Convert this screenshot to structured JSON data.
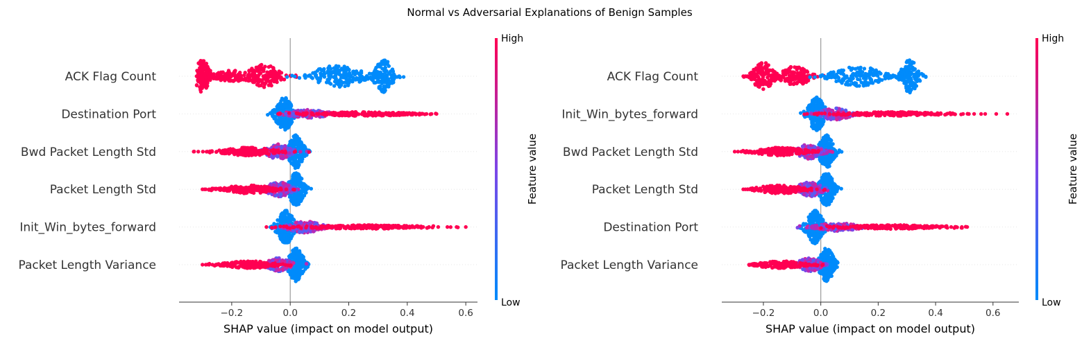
{
  "figure": {
    "suptitle": "Normal vs Adversarial Explanations of Benign Samples"
  },
  "colors": {
    "low": "#008bfb",
    "high": "#ff0052",
    "zero_line": "#999999",
    "row_grid": "#e6e6e6",
    "axis": "#333333"
  },
  "chart_data": [
    {
      "type": "scatter",
      "variant": "shap-beeswarm",
      "title": "",
      "xlabel": "SHAP value (impact on model output)",
      "ylabel": "",
      "xlim": [
        -0.38,
        0.64
      ],
      "xticks": [
        -0.2,
        0.0,
        0.2,
        0.4,
        0.6
      ],
      "xtick_labels": [
        "−0.2",
        "0.0",
        "0.2",
        "0.4",
        "0.6"
      ],
      "colorbar": {
        "title": "Feature value",
        "high_label": "High",
        "low_label": "Low"
      },
      "features": [
        {
          "name": "ACK Flag Count",
          "clusters": [
            {
              "center": -0.3,
              "spread": 0.018,
              "height": 1.0,
              "color": "high",
              "weight": 3
            },
            {
              "center": -0.2,
              "spread": 0.04,
              "height": 0.35,
              "color": "high",
              "weight": 2
            },
            {
              "center": -0.09,
              "spread": 0.04,
              "height": 0.7,
              "color": "high",
              "weight": 3
            },
            {
              "center": 0.16,
              "spread": 0.06,
              "height": 0.65,
              "color": "low",
              "weight": 4
            },
            {
              "center": 0.32,
              "spread": 0.022,
              "height": 1.0,
              "color": "low",
              "weight": 3
            }
          ],
          "range": [
            -0.32,
            0.39
          ]
        },
        {
          "name": "Destination Port",
          "clusters": [
            {
              "center": -0.02,
              "spread": 0.02,
              "height": 1.0,
              "color": "low",
              "weight": 5
            },
            {
              "center": 0.06,
              "spread": 0.05,
              "height": 0.25,
              "color": "mid",
              "weight": 3
            },
            {
              "center": 0.25,
              "spread": 0.12,
              "height": 0.12,
              "color": "high",
              "weight": 5
            }
          ],
          "range": [
            -0.085,
            0.5
          ]
        },
        {
          "name": "Bwd Packet Length Std",
          "clusters": [
            {
              "center": 0.02,
              "spread": 0.018,
              "height": 1.0,
              "color": "low",
              "weight": 5
            },
            {
              "center": -0.04,
              "spread": 0.03,
              "height": 0.45,
              "color": "mid",
              "weight": 3
            },
            {
              "center": -0.14,
              "spread": 0.06,
              "height": 0.25,
              "color": "high",
              "weight": 4
            }
          ],
          "range": [
            -0.33,
            0.09
          ]
        },
        {
          "name": "Packet Length Std",
          "clusters": [
            {
              "center": 0.02,
              "spread": 0.018,
              "height": 1.0,
              "color": "low",
              "weight": 5
            },
            {
              "center": -0.04,
              "spread": 0.03,
              "height": 0.45,
              "color": "mid",
              "weight": 3
            },
            {
              "center": -0.14,
              "spread": 0.06,
              "height": 0.25,
              "color": "high",
              "weight": 4
            }
          ],
          "range": [
            -0.3,
            0.095
          ]
        },
        {
          "name": "Init_Win_bytes_forward",
          "clusters": [
            {
              "center": -0.015,
              "spread": 0.02,
              "height": 1.0,
              "color": "low",
              "weight": 5
            },
            {
              "center": 0.05,
              "spread": 0.04,
              "height": 0.35,
              "color": "mid",
              "weight": 3
            },
            {
              "center": 0.25,
              "spread": 0.13,
              "height": 0.12,
              "color": "high",
              "weight": 5
            }
          ],
          "range": [
            -0.085,
            0.6
          ]
        },
        {
          "name": "Packet Length Variance",
          "clusters": [
            {
              "center": 0.02,
              "spread": 0.018,
              "height": 1.0,
              "color": "low",
              "weight": 5
            },
            {
              "center": -0.04,
              "spread": 0.03,
              "height": 0.4,
              "color": "mid",
              "weight": 3
            },
            {
              "center": -0.14,
              "spread": 0.06,
              "height": 0.22,
              "color": "high",
              "weight": 4
            }
          ],
          "range": [
            -0.3,
            0.07
          ]
        }
      ]
    },
    {
      "type": "scatter",
      "variant": "shap-beeswarm",
      "title": "",
      "xlabel": "SHAP value (impact on model output)",
      "ylabel": "",
      "xlim": [
        -0.345,
        0.69
      ],
      "xticks": [
        -0.2,
        0.0,
        0.2,
        0.4,
        0.6
      ],
      "xtick_labels": [
        "−0.2",
        "0.0",
        "0.2",
        "0.4",
        "0.6"
      ],
      "colorbar": {
        "title": "Feature value",
        "high_label": "High",
        "low_label": "Low"
      },
      "features": [
        {
          "name": "ACK Flag Count",
          "clusters": [
            {
              "center": -0.2,
              "spread": 0.025,
              "height": 0.85,
              "color": "high",
              "weight": 3
            },
            {
              "center": -0.09,
              "spread": 0.035,
              "height": 0.6,
              "color": "high",
              "weight": 3
            },
            {
              "center": 0.13,
              "spread": 0.06,
              "height": 0.6,
              "color": "low",
              "weight": 4
            },
            {
              "center": 0.31,
              "spread": 0.02,
              "height": 1.0,
              "color": "low",
              "weight": 3
            }
          ],
          "range": [
            -0.27,
            0.38
          ]
        },
        {
          "name": "Init_Win_bytes_forward",
          "clusters": [
            {
              "center": -0.015,
              "spread": 0.02,
              "height": 1.0,
              "color": "low",
              "weight": 5
            },
            {
              "center": 0.05,
              "spread": 0.04,
              "height": 0.35,
              "color": "mid",
              "weight": 3
            },
            {
              "center": 0.25,
              "spread": 0.12,
              "height": 0.12,
              "color": "high",
              "weight": 5
            }
          ],
          "range": [
            -0.085,
            0.65
          ]
        },
        {
          "name": "Bwd Packet Length Std",
          "clusters": [
            {
              "center": 0.02,
              "spread": 0.018,
              "height": 1.0,
              "color": "low",
              "weight": 5
            },
            {
              "center": -0.04,
              "spread": 0.03,
              "height": 0.45,
              "color": "mid",
              "weight": 3
            },
            {
              "center": -0.14,
              "spread": 0.06,
              "height": 0.25,
              "color": "high",
              "weight": 4
            }
          ],
          "range": [
            -0.3,
            0.09
          ]
        },
        {
          "name": "Packet Length Std",
          "clusters": [
            {
              "center": 0.02,
              "spread": 0.018,
              "height": 1.0,
              "color": "low",
              "weight": 5
            },
            {
              "center": -0.04,
              "spread": 0.03,
              "height": 0.45,
              "color": "mid",
              "weight": 3
            },
            {
              "center": -0.14,
              "spread": 0.06,
              "height": 0.25,
              "color": "high",
              "weight": 4
            }
          ],
          "range": [
            -0.27,
            0.085
          ]
        },
        {
          "name": "Destination Port",
          "clusters": [
            {
              "center": -0.02,
              "spread": 0.02,
              "height": 1.0,
              "color": "low",
              "weight": 5
            },
            {
              "center": 0.06,
              "spread": 0.05,
              "height": 0.25,
              "color": "mid",
              "weight": 3
            },
            {
              "center": 0.25,
              "spread": 0.11,
              "height": 0.12,
              "color": "high",
              "weight": 5
            }
          ],
          "range": [
            -0.085,
            0.51
          ]
        },
        {
          "name": "Packet Length Variance",
          "clusters": [
            {
              "center": 0.02,
              "spread": 0.018,
              "height": 1.0,
              "color": "low",
              "weight": 5
            },
            {
              "center": -0.04,
              "spread": 0.03,
              "height": 0.4,
              "color": "mid",
              "weight": 3
            },
            {
              "center": -0.14,
              "spread": 0.055,
              "height": 0.22,
              "color": "high",
              "weight": 4
            }
          ],
          "range": [
            -0.25,
            0.06
          ]
        }
      ]
    }
  ]
}
